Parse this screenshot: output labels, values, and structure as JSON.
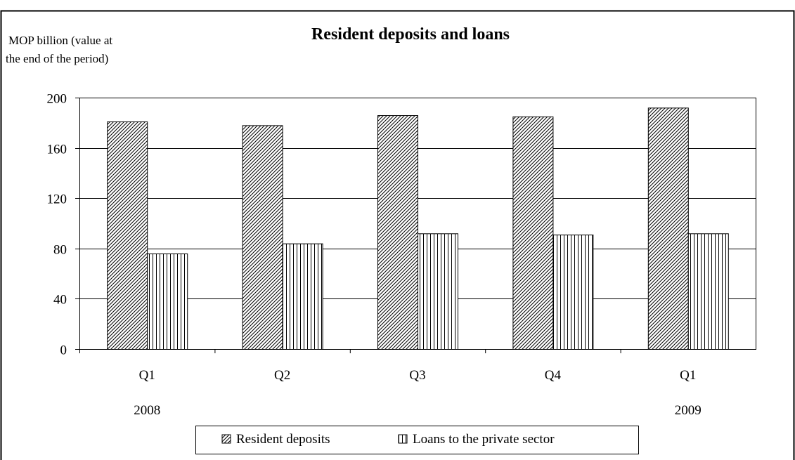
{
  "chart_data": {
    "type": "bar",
    "title": "Resident deposits and loans",
    "ylabel_lines": [
      "MOP billion (value at",
      "the end of the period)"
    ],
    "xlabel": "",
    "categories": [
      "Q1",
      "Q2",
      "Q3",
      "Q4",
      "Q1"
    ],
    "year_labels": [
      {
        "index": 0,
        "label": "2008"
      },
      {
        "index": 4,
        "label": "2009"
      }
    ],
    "series": [
      {
        "name": "Resident deposits",
        "pattern": "diagonal-hatch",
        "values": [
          181,
          178,
          186,
          185,
          192
        ]
      },
      {
        "name": "Loans to the private sector",
        "pattern": "vertical-hatch",
        "values": [
          76,
          84,
          92,
          91,
          92
        ]
      }
    ],
    "ylim": [
      0,
      200
    ],
    "yticks": [
      0,
      40,
      80,
      120,
      160,
      200
    ],
    "grid": true,
    "legend_position": "bottom-center",
    "colors": {
      "bar_fill": "#ffffff",
      "stroke": "#000000",
      "background": "#ffffff"
    }
  }
}
